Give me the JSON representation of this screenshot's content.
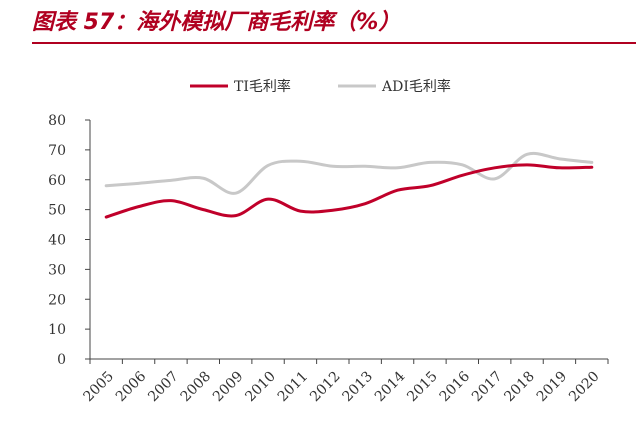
{
  "header": {
    "title": "图表 57：海外模拟厂商毛利率（%）"
  },
  "chart_data": {
    "type": "line",
    "title": "",
    "xlabel": "",
    "ylabel": "",
    "ylim": [
      0,
      80
    ],
    "yticks": [
      0,
      10,
      20,
      30,
      40,
      50,
      60,
      70,
      80
    ],
    "grid": false,
    "legend_position": "top",
    "categories": [
      "2005",
      "2006",
      "2007",
      "2008",
      "2009",
      "2010",
      "2011",
      "2012",
      "2013",
      "2014",
      "2015",
      "2016",
      "2017",
      "2018",
      "2019",
      "2020"
    ],
    "series": [
      {
        "name": "TI毛利率",
        "color": "#c0002a",
        "values": [
          47.5,
          51,
          53,
          50,
          48,
          53.5,
          49.5,
          49.8,
          52,
          56.5,
          58,
          61.5,
          64,
          65,
          64,
          64.2
        ]
      },
      {
        "name": "ADI毛利率",
        "color": "#c8c8c8",
        "values": [
          58,
          58.8,
          59.8,
          60.5,
          55.5,
          64.8,
          66.2,
          64.5,
          64.5,
          64,
          65.8,
          65,
          60.3,
          68.5,
          67,
          65.8
        ]
      }
    ]
  }
}
